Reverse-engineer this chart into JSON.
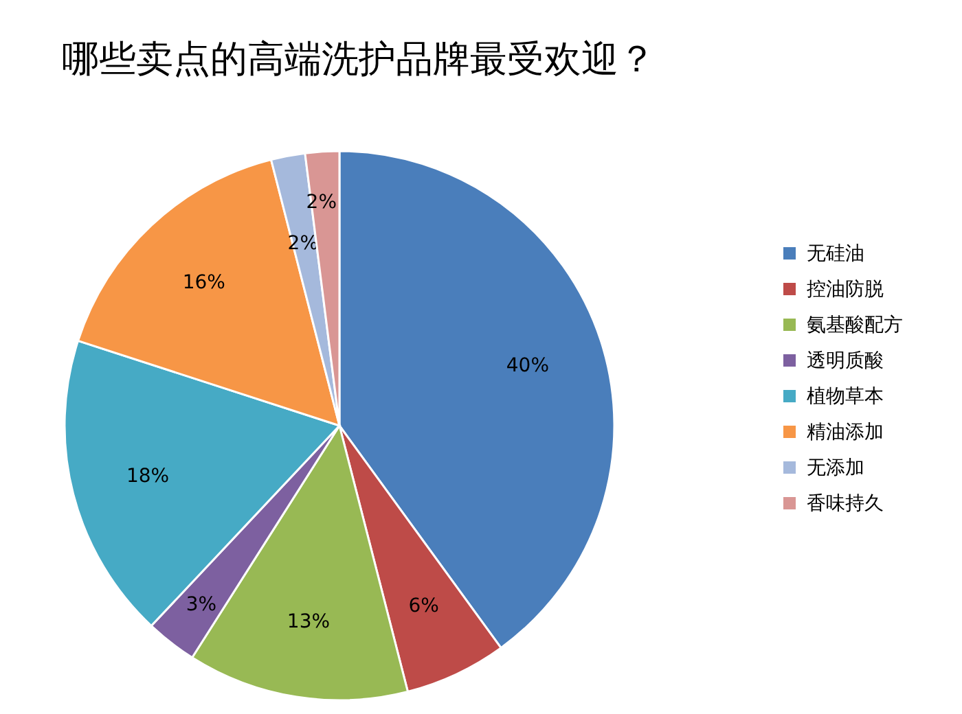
{
  "chart_data": {
    "type": "pie",
    "title": "哪些卖点的高端洗护品牌最受欢迎？",
    "categories": [
      "无硅油",
      "控油防脱",
      "氨基酸配方",
      "透明质酸",
      "植物草本",
      "精油添加",
      "无添加",
      "香味持久"
    ],
    "values": [
      40,
      6,
      13,
      3,
      18,
      16,
      2,
      2
    ],
    "value_labels": [
      "40%",
      "6%",
      "13%",
      "3%",
      "18%",
      "16%",
      "2%",
      "2%"
    ],
    "colors": [
      "#4a7ebb",
      "#be4b48",
      "#98b954",
      "#7d60a0",
      "#46aac5",
      "#f79646",
      "#a5b9dc",
      "#d99694"
    ],
    "legend": "right"
  }
}
